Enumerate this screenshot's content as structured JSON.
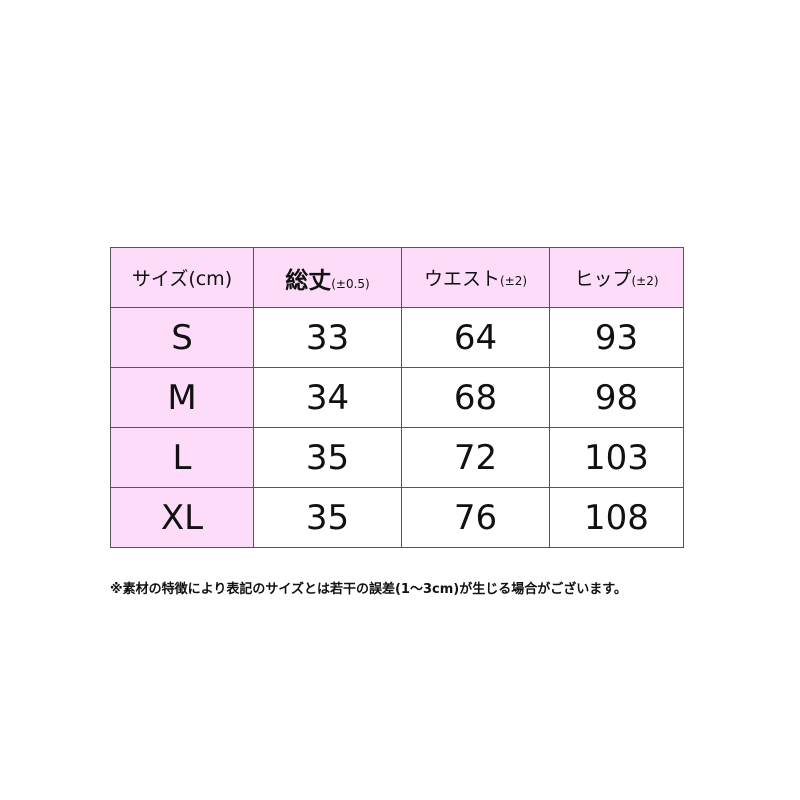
{
  "colors": {
    "header_bg": "#fcdcf8",
    "border": "#555555"
  },
  "table": {
    "headers": [
      {
        "main": "サイズ(cm)",
        "tol": ""
      },
      {
        "main": "総丈",
        "tol": "(±0.5)"
      },
      {
        "main": "ウエスト",
        "tol": "(±2)"
      },
      {
        "main": "ヒップ",
        "tol": "(±2)"
      }
    ],
    "rows": [
      {
        "size": "S",
        "length": "33",
        "waist": "64",
        "hip": "93"
      },
      {
        "size": "M",
        "length": "34",
        "waist": "68",
        "hip": "98"
      },
      {
        "size": "L",
        "length": "35",
        "waist": "72",
        "hip": "103"
      },
      {
        "size": "XL",
        "length": "35",
        "waist": "76",
        "hip": "108"
      }
    ]
  },
  "note": "※素材の特徴により表記のサイズとは若干の誤差(1～3cm)が生じる場合がございます。"
}
